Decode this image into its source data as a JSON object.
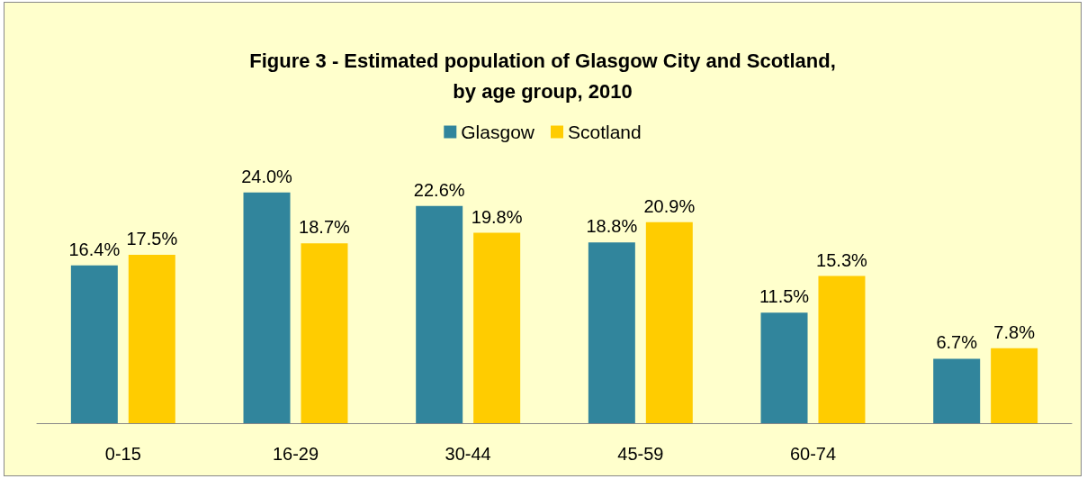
{
  "chart_data": {
    "type": "bar",
    "title": "Figure 3 - Estimated population of Glasgow City and Scotland,\nby age group, 2010",
    "categories": [
      "0-15",
      "16-29",
      "30-44",
      "45-59",
      "60-74",
      null
    ],
    "series": [
      {
        "name": "Glasgow",
        "color": "#31859c",
        "values": [
          16.4,
          24.0,
          22.6,
          18.8,
          11.5,
          6.7
        ],
        "value_labels": [
          "16.4%",
          "24.0%",
          "22.6%",
          "18.8%",
          "11.5%",
          "6.7%"
        ]
      },
      {
        "name": "Scotland",
        "color": "#ffcc00",
        "values": [
          17.5,
          18.7,
          19.8,
          20.9,
          15.3,
          7.8
        ],
        "value_labels": [
          "17.5%",
          "18.7%",
          "19.8%",
          "20.9%",
          "15.3%",
          "7.8%"
        ]
      }
    ],
    "legend": "top"
  }
}
